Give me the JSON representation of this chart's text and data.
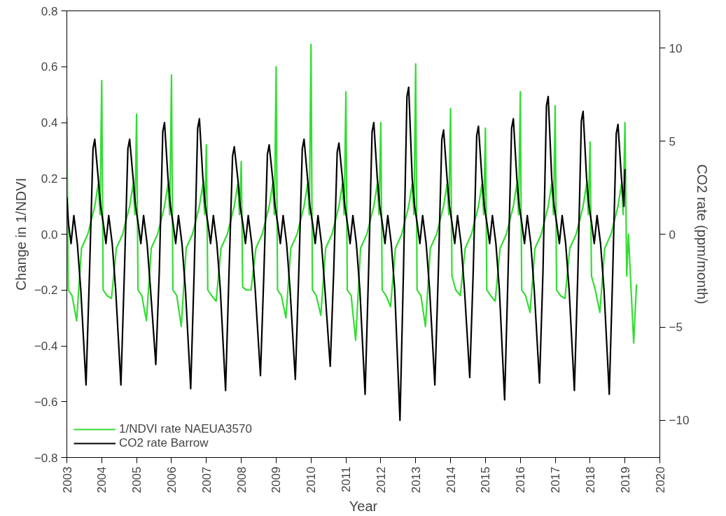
{
  "chart_data": {
    "type": "line",
    "xlabel": "Year",
    "ylabel": "Change in 1/NDVI",
    "y2label": "CO2 rate (ppm/month)",
    "xlim": [
      2003,
      2020
    ],
    "xticks": [
      2003,
      2004,
      2005,
      2006,
      2007,
      2008,
      2009,
      2010,
      2011,
      2012,
      2013,
      2014,
      2015,
      2016,
      2017,
      2018,
      2019,
      2020
    ],
    "ylim": [
      -0.8,
      0.8
    ],
    "yticks": [
      -0.8,
      -0.6,
      -0.4,
      -0.2,
      {
        "value": 0,
        "label": "0.0"
      },
      0.2,
      0.4,
      0.6,
      0.8
    ],
    "y2lim": [
      -12,
      12
    ],
    "y2ticks": [
      -10,
      -5,
      0,
      5,
      10
    ],
    "grid": false,
    "legend": "bottom left",
    "line_style": "solid",
    "marker": "none",
    "series": [
      {
        "name": "1/NDVI rate NAEUA3570",
        "color": "#33dd33",
        "x": [
          2003,
          2003.04,
          2003.15,
          2003.28,
          2003.42,
          2003.6,
          2003.8,
          2003.9,
          2003.95,
          2004,
          2004.04,
          2004.15,
          2004.28,
          2004.42,
          2004.6,
          2004.8,
          2004.9,
          2004.95,
          2005,
          2005.04,
          2005.15,
          2005.28,
          2005.42,
          2005.6,
          2005.8,
          2005.9,
          2005.95,
          2006,
          2006.04,
          2006.15,
          2006.28,
          2006.42,
          2006.6,
          2006.8,
          2006.9,
          2006.95,
          2007,
          2007.04,
          2007.15,
          2007.28,
          2007.42,
          2007.6,
          2007.8,
          2007.9,
          2007.95,
          2008,
          2008.04,
          2008.15,
          2008.28,
          2008.42,
          2008.6,
          2008.8,
          2008.9,
          2008.95,
          2009,
          2009.04,
          2009.15,
          2009.28,
          2009.42,
          2009.6,
          2009.8,
          2009.9,
          2009.95,
          2010,
          2010.04,
          2010.15,
          2010.28,
          2010.42,
          2010.6,
          2010.8,
          2010.9,
          2010.95,
          2011,
          2011.04,
          2011.15,
          2011.28,
          2011.42,
          2011.6,
          2011.8,
          2011.9,
          2011.95,
          2012,
          2012.04,
          2012.15,
          2012.28,
          2012.42,
          2012.6,
          2012.8,
          2012.9,
          2012.95,
          2013,
          2013.04,
          2013.15,
          2013.28,
          2013.42,
          2013.6,
          2013.8,
          2013.9,
          2013.95,
          2014,
          2014.04,
          2014.15,
          2014.28,
          2014.42,
          2014.6,
          2014.8,
          2014.9,
          2014.95,
          2015,
          2015.04,
          2015.15,
          2015.28,
          2015.42,
          2015.6,
          2015.8,
          2015.9,
          2015.95,
          2016,
          2016.04,
          2016.15,
          2016.28,
          2016.42,
          2016.6,
          2016.8,
          2016.9,
          2016.95,
          2017,
          2017.04,
          2017.15,
          2017.28,
          2017.42,
          2017.6,
          2017.8,
          2017.9,
          2017.95,
          2018,
          2018.04,
          2018.15,
          2018.28,
          2018.42,
          2018.6,
          2018.8,
          2018.9,
          2018.95,
          2019,
          2019.05,
          2019.1,
          2019.25,
          2019.33
        ],
        "values": [
          0.42,
          -0.2,
          -0.22,
          -0.31,
          -0.05,
          0.0,
          0.1,
          0.18,
          0.07,
          0.55,
          -0.2,
          -0.22,
          -0.23,
          -0.05,
          0.0,
          0.1,
          0.18,
          0.07,
          0.43,
          -0.2,
          -0.22,
          -0.31,
          -0.05,
          0.0,
          0.1,
          0.18,
          0.07,
          0.57,
          -0.2,
          -0.22,
          -0.33,
          -0.05,
          0.0,
          0.1,
          0.18,
          0.07,
          0.32,
          -0.2,
          -0.22,
          -0.24,
          -0.05,
          0.0,
          0.1,
          0.18,
          0.07,
          0.26,
          -0.19,
          -0.2,
          -0.2,
          -0.05,
          0.0,
          0.1,
          0.18,
          0.07,
          0.6,
          -0.2,
          -0.22,
          -0.3,
          -0.05,
          0.0,
          0.1,
          0.18,
          0.07,
          0.68,
          -0.2,
          -0.22,
          -0.29,
          -0.05,
          0.0,
          0.1,
          0.18,
          0.07,
          0.51,
          -0.2,
          -0.22,
          -0.38,
          -0.05,
          0.0,
          0.1,
          0.18,
          0.07,
          0.4,
          -0.2,
          -0.22,
          -0.26,
          -0.05,
          0.0,
          0.1,
          0.18,
          0.07,
          0.61,
          -0.2,
          -0.22,
          -0.33,
          -0.05,
          0.0,
          0.1,
          0.18,
          0.07,
          0.45,
          -0.15,
          -0.2,
          -0.22,
          -0.05,
          0.0,
          0.1,
          0.18,
          0.07,
          0.38,
          -0.2,
          -0.22,
          -0.24,
          -0.05,
          0.0,
          0.1,
          0.18,
          0.07,
          0.51,
          -0.2,
          -0.22,
          -0.28,
          -0.05,
          0.0,
          0.1,
          0.18,
          0.07,
          0.46,
          -0.2,
          -0.22,
          -0.23,
          -0.05,
          0.0,
          0.1,
          0.18,
          0.07,
          0.33,
          -0.15,
          -0.2,
          -0.28,
          -0.05,
          0.0,
          0.1,
          0.18,
          0.07,
          0.4,
          -0.15,
          0.0,
          -0.39,
          -0.18
        ]
      },
      {
        "name": "CO2 rate Barrow",
        "color": "#000000",
        "axis": "y2",
        "x": [
          2003,
          2003.05,
          2003.12,
          2003.2,
          2003.3,
          2003.4,
          2003.55,
          2003.65,
          2003.75,
          2003.8,
          2003.9,
          2003.97,
          2004.05,
          2004.12,
          2004.2,
          2004.3,
          2004.4,
          2004.55,
          2004.65,
          2004.75,
          2004.8,
          2004.9,
          2004.97,
          2005.05,
          2005.12,
          2005.2,
          2005.3,
          2005.4,
          2005.55,
          2005.65,
          2005.75,
          2005.8,
          2005.9,
          2005.97,
          2006.05,
          2006.12,
          2006.2,
          2006.3,
          2006.4,
          2006.55,
          2006.65,
          2006.75,
          2006.8,
          2006.9,
          2006.97,
          2007.05,
          2007.12,
          2007.2,
          2007.3,
          2007.4,
          2007.55,
          2007.65,
          2007.75,
          2007.8,
          2007.9,
          2007.97,
          2008.05,
          2008.12,
          2008.2,
          2008.3,
          2008.4,
          2008.55,
          2008.65,
          2008.75,
          2008.8,
          2008.9,
          2008.97,
          2009.05,
          2009.12,
          2009.2,
          2009.3,
          2009.4,
          2009.55,
          2009.65,
          2009.75,
          2009.8,
          2009.9,
          2009.97,
          2010.05,
          2010.12,
          2010.2,
          2010.3,
          2010.4,
          2010.55,
          2010.65,
          2010.75,
          2010.8,
          2010.9,
          2010.97,
          2011.05,
          2011.12,
          2011.2,
          2011.3,
          2011.4,
          2011.55,
          2011.65,
          2011.75,
          2011.8,
          2011.9,
          2011.97,
          2012.05,
          2012.12,
          2012.2,
          2012.3,
          2012.4,
          2012.55,
          2012.65,
          2012.75,
          2012.8,
          2012.9,
          2012.97,
          2013.05,
          2013.12,
          2013.2,
          2013.3,
          2013.4,
          2013.55,
          2013.65,
          2013.75,
          2013.8,
          2013.9,
          2013.97,
          2014.05,
          2014.12,
          2014.2,
          2014.3,
          2014.4,
          2014.55,
          2014.65,
          2014.75,
          2014.8,
          2014.9,
          2014.97,
          2015.05,
          2015.12,
          2015.2,
          2015.3,
          2015.4,
          2015.55,
          2015.65,
          2015.75,
          2015.8,
          2015.9,
          2015.97,
          2016.05,
          2016.12,
          2016.2,
          2016.3,
          2016.4,
          2016.55,
          2016.65,
          2016.75,
          2016.8,
          2016.9,
          2016.97,
          2017.05,
          2017.12,
          2017.2,
          2017.3,
          2017.4,
          2017.55,
          2017.65,
          2017.75,
          2017.8,
          2017.9,
          2017.97,
          2018.05,
          2018.12,
          2018.2,
          2018.3,
          2018.4,
          2018.55,
          2018.65,
          2018.75,
          2018.8,
          2018.9,
          2018.97,
          2019
        ],
        "values": [
          2,
          0.5,
          -0.5,
          1,
          -0.5,
          -3,
          -8.1,
          -2,
          4.6,
          5.1,
          3,
          1.5,
          0.5,
          -0.5,
          1,
          -0.5,
          -3,
          -8.1,
          -2,
          4.6,
          5.1,
          3,
          1.5,
          0.5,
          -0.5,
          1,
          -0.5,
          -3,
          -7,
          -2,
          5.5,
          6.0,
          3,
          1.5,
          0.5,
          -0.5,
          1,
          -0.5,
          -3,
          -8.3,
          -2,
          5.7,
          6.2,
          3,
          1.5,
          0.5,
          -0.5,
          1,
          -0.5,
          -3,
          -8.4,
          -2,
          4.2,
          4.7,
          3,
          1.5,
          0.5,
          -0.5,
          1,
          -0.5,
          -3,
          -7.6,
          -2,
          4.3,
          4.8,
          3,
          1.5,
          0.5,
          -0.5,
          1,
          -0.5,
          -3,
          -7.8,
          -2,
          4.6,
          5.1,
          3,
          1.5,
          0.5,
          -0.5,
          1,
          -0.5,
          -3,
          -7.1,
          -2,
          4.4,
          4.9,
          3,
          1.5,
          0.5,
          -0.5,
          1,
          -0.5,
          -3,
          -8.6,
          -2,
          5.5,
          6.0,
          3,
          1.5,
          0.5,
          -0.5,
          1,
          -0.5,
          -3,
          -10,
          -2,
          7.4,
          7.9,
          3,
          1.5,
          0.5,
          -0.5,
          1,
          -0.5,
          -3,
          -8.1,
          -2,
          5.1,
          5.6,
          3,
          1.5,
          0.5,
          -0.5,
          1,
          -0.5,
          -3,
          -7.7,
          -2,
          5.3,
          5.8,
          3,
          1.5,
          0.5,
          -0.5,
          1,
          -0.5,
          -3,
          -8.9,
          -2,
          5.7,
          6.2,
          3,
          1.5,
          0.5,
          -0.5,
          1,
          -0.5,
          -3,
          -8,
          -2,
          6.9,
          7.4,
          3,
          1.5,
          0.5,
          -0.5,
          1,
          -0.5,
          -3,
          -8.4,
          -2,
          6.1,
          6.6,
          3,
          1.5,
          0.5,
          -0.5,
          1,
          -0.5,
          -3,
          -8.6,
          -2,
          5.4,
          5.9,
          3,
          1.5,
          3.5
        ]
      }
    ]
  }
}
